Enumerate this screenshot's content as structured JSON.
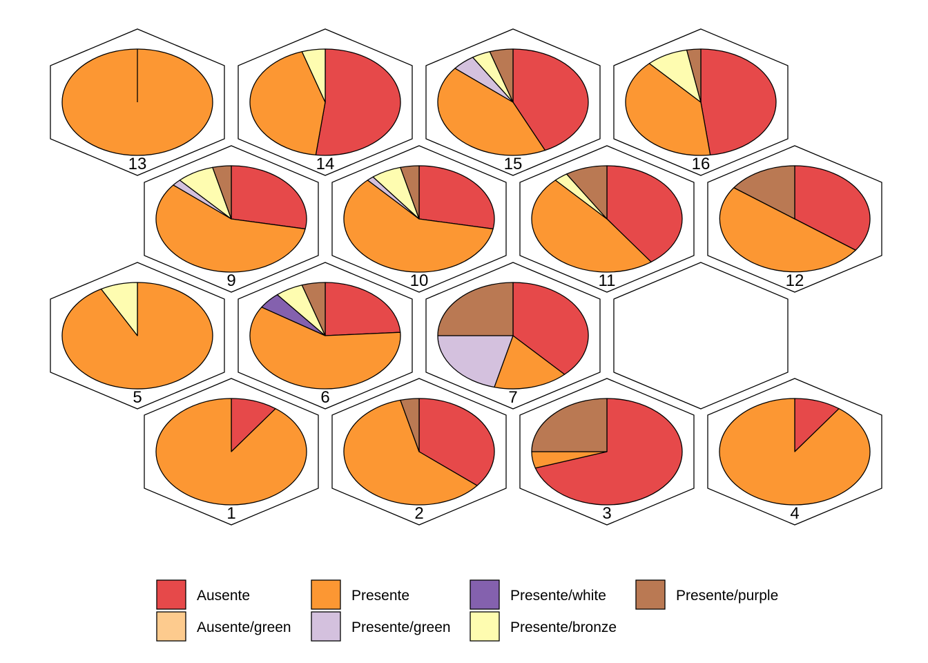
{
  "chart_data": {
    "type": "pie",
    "title": "",
    "grid": "hexagonal",
    "grid_dims": [
      4,
      4
    ],
    "legend_placement": "bottom",
    "categories": [
      "Ausente",
      "Presente",
      "Presente/white",
      "Presente/purple",
      "Ausente/green",
      "Presente/green",
      "Presente/bronze"
    ],
    "colors": {
      "Ausente": "#E6494A",
      "Presente": "#FC9733",
      "Presente/white": "#8461AE",
      "Presente/purple": "#BA7953",
      "Ausente/green": "#FDCB8E",
      "Presente/green": "#D4C1DE",
      "Presente/bronze": "#FEFCB0"
    },
    "nodes": [
      {
        "id": "1",
        "values": {
          "Ausente": 0.1,
          "Presente": 0.9
        }
      },
      {
        "id": "2",
        "values": {
          "Ausente": 0.36,
          "Presente": 0.6,
          "Presente/purple": 0.04
        }
      },
      {
        "id": "3",
        "values": {
          "Ausente": 0.7,
          "Presente": 0.05,
          "Presente/purple": 0.25
        }
      },
      {
        "id": "4",
        "values": {
          "Ausente": 0.1,
          "Presente": 0.9
        }
      },
      {
        "id": "5",
        "values": {
          "Presente": 0.92,
          "Presente/bronze": 0.08
        }
      },
      {
        "id": "6",
        "values": {
          "Ausente": 0.24,
          "Presente": 0.6,
          "Presente/white": 0.05,
          "Presente/bronze": 0.06,
          "Presente/purple": 0.05
        }
      },
      {
        "id": "7",
        "values": {
          "Ausente": 0.38,
          "Presente": 0.16,
          "Presente/green": 0.21,
          "Presente/purple": 0.25
        }
      },
      {
        "id": "8",
        "values": {}
      },
      {
        "id": "9",
        "values": {
          "Ausente": 0.28,
          "Presente": 0.58,
          "Presente/green": 0.02,
          "Presente/bronze": 0.08,
          "Presente/purple": 0.04
        }
      },
      {
        "id": "10",
        "values": {
          "Ausente": 0.28,
          "Presente": 0.6,
          "Presente/green": 0.015,
          "Presente/bronze": 0.065,
          "Presente/purple": 0.04
        }
      },
      {
        "id": "11",
        "values": {
          "Ausente": 0.4,
          "Presente": 0.48,
          "Presente/bronze": 0.03,
          "Presente/purple": 0.09
        }
      },
      {
        "id": "12",
        "values": {
          "Ausente": 0.35,
          "Presente": 0.5,
          "Presente/purple": 0.15
        }
      },
      {
        "id": "13",
        "values": {
          "Presente": 1.0
        }
      },
      {
        "id": "14",
        "values": {
          "Ausente": 0.52,
          "Presente": 0.43,
          "Presente/bronze": 0.05
        }
      },
      {
        "id": "15",
        "values": {
          "Ausente": 0.43,
          "Presente": 0.43,
          "Presente/green": 0.05,
          "Presente/bronze": 0.04,
          "Presente/purple": 0.05
        }
      },
      {
        "id": "16",
        "values": {
          "Ausente": 0.48,
          "Presente": 0.4,
          "Presente/bronze": 0.09,
          "Presente/purple": 0.03
        }
      }
    ],
    "legend": [
      [
        "Ausente",
        "Presente",
        "Presente/white",
        "Presente/purple"
      ],
      [
        "Ausente/green",
        "Presente/green",
        "Presente/bronze"
      ]
    ]
  }
}
